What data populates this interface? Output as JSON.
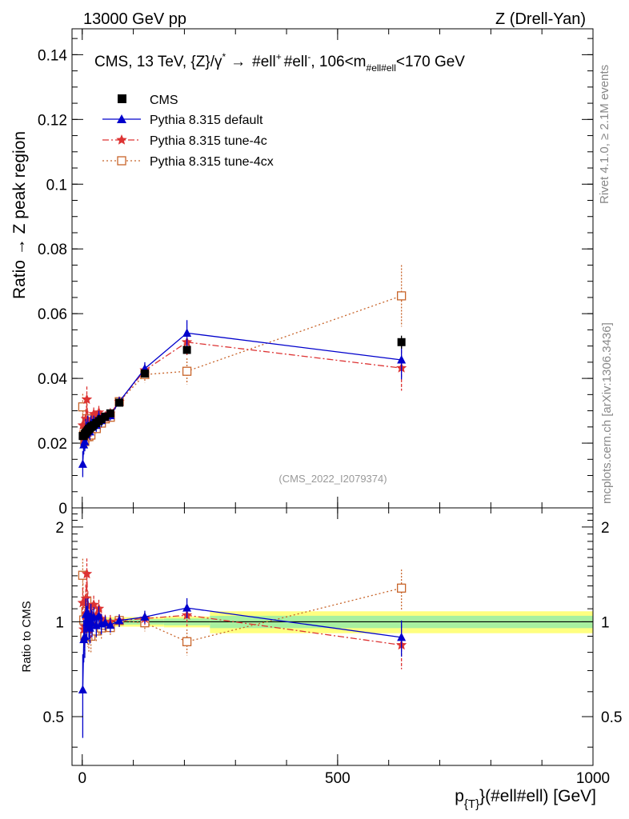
{
  "header": {
    "left": "13000 GeV pp",
    "right": "Z (Drell-Yan)"
  },
  "side": {
    "rivet": "Rivet 4.1.0, ≥ 2.1M events",
    "mcplots": "mcplots.cern.ch [arXiv:1306.3436]"
  },
  "chart_data": {
    "type": "line",
    "title_main": "CMS, 13 TeV, {Z}/γ",
    "title_star": "*",
    "title_arrow": "→",
    "title_ell1": "#ell",
    "title_plus": "+",
    "title_ell2": "#ell",
    "title_minus": "-",
    "title_range_a": ", 106<m",
    "title_sub": "#ell#ell",
    "title_range_b": "<170 GeV",
    "watermark": "(CMS_2022_I2079374)",
    "ylabel_top": "Ratio → Z peak region",
    "ylabel_bottom": "Ratio to CMS",
    "xlabel_main": "p",
    "xlabel_sub": "{T}",
    "xlabel_rest": "}(#ell#ell) [GeV]",
    "xlim": [
      -20,
      1000
    ],
    "ylim_top": [
      0,
      0.148
    ],
    "ylim_bottom": [
      0.35,
      2.3
    ],
    "x_ticks": [
      {
        "v": 0,
        "label": "0"
      },
      {
        "v": 500,
        "label": "500"
      },
      {
        "v": 1000,
        "label": "1000"
      }
    ],
    "y_ticks_top": [
      {
        "v": 0,
        "label": "0"
      },
      {
        "v": 0.02,
        "label": "0.02"
      },
      {
        "v": 0.04,
        "label": "0.04"
      },
      {
        "v": 0.06,
        "label": "0.06"
      },
      {
        "v": 0.08,
        "label": "0.08"
      },
      {
        "v": 0.1,
        "label": "0.1"
      },
      {
        "v": 0.12,
        "label": "0.12"
      },
      {
        "v": 0.14,
        "label": "0.14"
      }
    ],
    "y_ticks_bottom": [
      {
        "v": 0.5,
        "label": "0.5"
      },
      {
        "v": 1,
        "label": "1"
      },
      {
        "v": 2,
        "label": "2"
      }
    ],
    "bins": [
      {
        "lo": 0,
        "hi": 2
      },
      {
        "lo": 2,
        "hi": 4
      },
      {
        "lo": 4,
        "hi": 6
      },
      {
        "lo": 6,
        "hi": 8
      },
      {
        "lo": 8,
        "hi": 10
      },
      {
        "lo": 10,
        "hi": 12
      },
      {
        "lo": 12,
        "hi": 14
      },
      {
        "lo": 14,
        "hi": 16
      },
      {
        "lo": 16,
        "hi": 18
      },
      {
        "lo": 18,
        "hi": 20
      },
      {
        "lo": 20,
        "hi": 25
      },
      {
        "lo": 25,
        "hi": 30
      },
      {
        "lo": 30,
        "hi": 35
      },
      {
        "lo": 35,
        "hi": 40
      },
      {
        "lo": 40,
        "hi": 50
      },
      {
        "lo": 50,
        "hi": 60
      },
      {
        "lo": 60,
        "hi": 85
      },
      {
        "lo": 85,
        "hi": 160
      },
      {
        "lo": 160,
        "hi": 250
      },
      {
        "lo": 250,
        "hi": 1000
      }
    ],
    "x": [
      1,
      3,
      5,
      7,
      9,
      11,
      13,
      15,
      17,
      19,
      22.5,
      27.5,
      32.5,
      37.5,
      45,
      55,
      72.5,
      122.5,
      205,
      625
    ],
    "band_inner": [
      0.04,
      0.035,
      0.03,
      0.03,
      0.03,
      0.03,
      0.03,
      0.03,
      0.03,
      0.03,
      0.025,
      0.025,
      0.025,
      0.025,
      0.02,
      0.02,
      0.02,
      0.02,
      0.025,
      0.045
    ],
    "band_outer": [
      0.06,
      0.05,
      0.045,
      0.045,
      0.045,
      0.045,
      0.045,
      0.045,
      0.045,
      0.045,
      0.04,
      0.04,
      0.04,
      0.04,
      0.035,
      0.035,
      0.035,
      0.035,
      0.04,
      0.08
    ],
    "legend": [
      {
        "key": "cms",
        "label": "CMS"
      },
      {
        "key": "default",
        "label": "Pythia 8.315 default"
      },
      {
        "key": "tune4c",
        "label": "Pythia 8.315 tune-4c"
      },
      {
        "key": "tune4cx",
        "label": "Pythia 8.315 tune-4cx"
      }
    ],
    "series": [
      {
        "key": "cms",
        "name": "CMS",
        "color": "#000000",
        "values": [
          0.0222,
          0.0222,
          0.0228,
          0.0232,
          0.0236,
          0.024,
          0.0244,
          0.0246,
          0.025,
          0.0252,
          0.0256,
          0.0262,
          0.0268,
          0.0274,
          0.0282,
          0.0292,
          0.0325,
          0.0415,
          0.0488,
          0.0512
        ],
        "errors": [
          0.001,
          0.001,
          0.001,
          0.001,
          0.001,
          0.001,
          0.001,
          0.001,
          0.001,
          0.001,
          0.0008,
          0.0008,
          0.0008,
          0.0008,
          0.0008,
          0.0008,
          0.0008,
          0.001,
          0.0012,
          0.002
        ]
      },
      {
        "key": "default",
        "name": "Pythia 8.315 default",
        "color": "#0000cc",
        "values": [
          0.0135,
          0.0195,
          0.0205,
          0.0245,
          0.0235,
          0.0255,
          0.024,
          0.0235,
          0.026,
          0.025,
          0.0265,
          0.0255,
          0.028,
          0.027,
          0.028,
          0.0285,
          0.0328,
          0.043,
          0.054,
          0.0457
        ],
        "errors": [
          0.004,
          0.003,
          0.003,
          0.003,
          0.003,
          0.003,
          0.0025,
          0.0025,
          0.0025,
          0.0025,
          0.002,
          0.002,
          0.002,
          0.002,
          0.0015,
          0.0015,
          0.0015,
          0.002,
          0.004,
          0.006
        ]
      },
      {
        "key": "tune4c",
        "name": "Pythia 8.315 tune-4c",
        "color": "#dd3333",
        "values": [
          0.0255,
          0.021,
          0.022,
          0.0275,
          0.0335,
          0.027,
          0.024,
          0.0255,
          0.0245,
          0.0265,
          0.029,
          0.0275,
          0.0295,
          0.028,
          0.0282,
          0.0292,
          0.0328,
          0.0425,
          0.0512,
          0.0432
        ],
        "errors": [
          0.003,
          0.003,
          0.003,
          0.003,
          0.004,
          0.003,
          0.0025,
          0.0025,
          0.0025,
          0.0025,
          0.002,
          0.002,
          0.002,
          0.002,
          0.0015,
          0.0015,
          0.0015,
          0.002,
          0.004,
          0.007
        ]
      },
      {
        "key": "tune4cx",
        "name": "Pythia 8.315 tune-4cx",
        "color": "#c8642a",
        "values": [
          0.0312,
          0.0225,
          0.0205,
          0.025,
          0.0275,
          0.023,
          0.022,
          0.0235,
          0.0225,
          0.0245,
          0.0255,
          0.0245,
          0.0265,
          0.0262,
          0.0275,
          0.028,
          0.0328,
          0.0412,
          0.0422,
          0.0655
        ],
        "errors": [
          0.004,
          0.003,
          0.003,
          0.003,
          0.003,
          0.003,
          0.0025,
          0.0025,
          0.0025,
          0.0025,
          0.002,
          0.002,
          0.002,
          0.002,
          0.0015,
          0.0015,
          0.0015,
          0.0025,
          0.004,
          0.0095
        ]
      }
    ]
  }
}
